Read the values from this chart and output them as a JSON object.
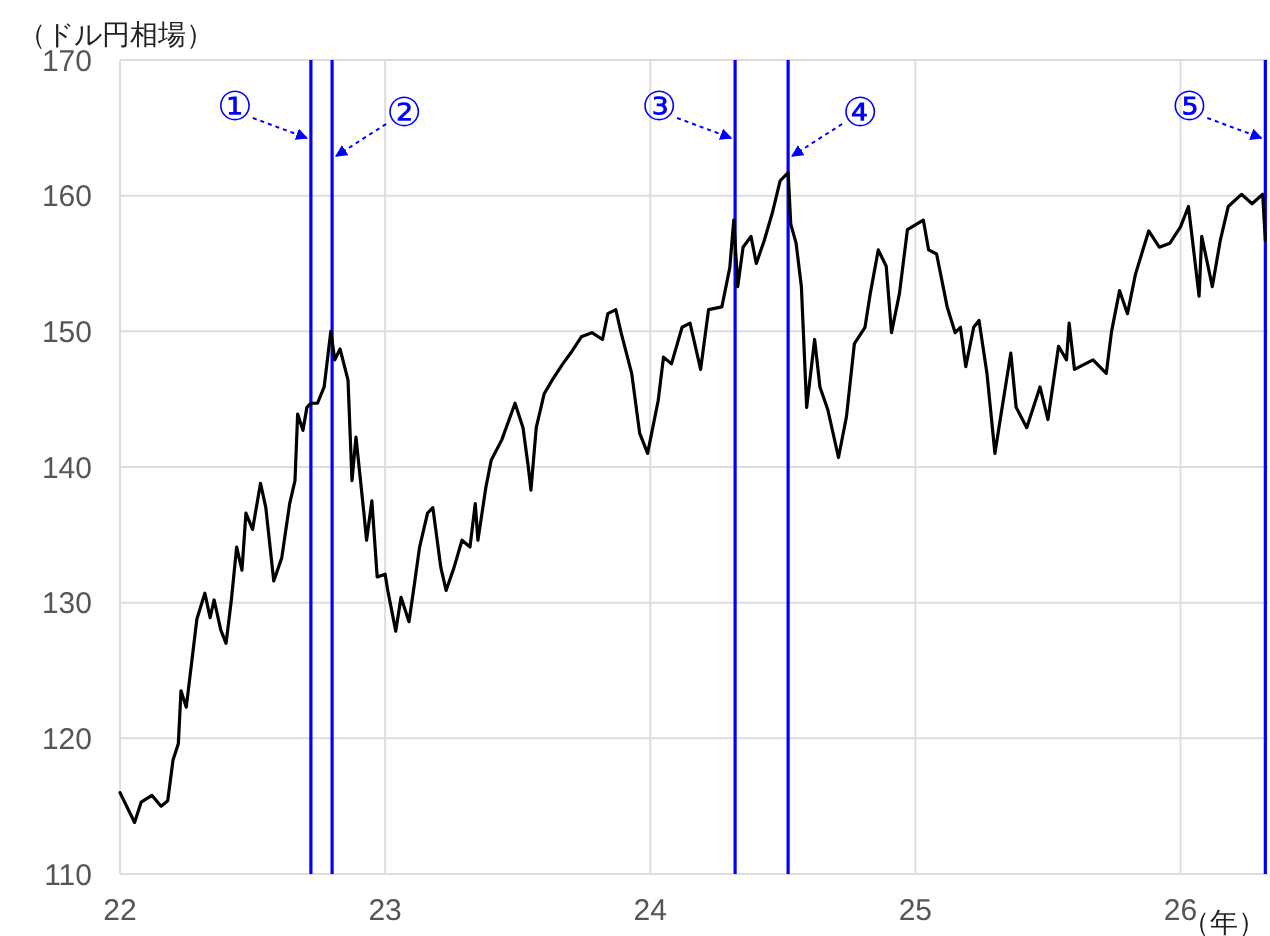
{
  "chart_data": {
    "type": "line",
    "ylabel": "（ドル円相場）",
    "xlabel": "（年）",
    "xlim": [
      22,
      26.33
    ],
    "xticks": [
      22,
      23,
      24,
      25,
      26
    ],
    "ylim": [
      110,
      170
    ],
    "yticks": [
      110,
      120,
      130,
      140,
      150,
      160,
      170
    ],
    "grid": true,
    "marker": "none",
    "line_style": "solid",
    "ref_lines": [
      {
        "axis": "x",
        "value": 22.72,
        "label": "①",
        "color": "#0000ff"
      },
      {
        "axis": "x",
        "value": 22.8,
        "label": "②",
        "color": "#0000ff"
      },
      {
        "axis": "x",
        "value": 24.32,
        "label": "③",
        "color": "#0000ff"
      },
      {
        "axis": "x",
        "value": 24.52,
        "label": "④",
        "color": "#0000ff"
      },
      {
        "axis": "x",
        "value": 26.32,
        "label": "⑤",
        "color": "#0000ff"
      }
    ],
    "series": [
      {
        "color": "#000000",
        "x": [
          22.0,
          22.055,
          22.08,
          22.12,
          22.155,
          22.18,
          22.2,
          22.22,
          22.23,
          22.25,
          22.29,
          22.32,
          22.34,
          22.355,
          22.38,
          22.4,
          22.42,
          22.44,
          22.46,
          22.475,
          22.5,
          22.53,
          22.55,
          22.58,
          22.61,
          22.64,
          22.66,
          22.67,
          22.69,
          22.705,
          22.72,
          22.745,
          22.77,
          22.795,
          22.81,
          22.83,
          22.86,
          22.875,
          22.89,
          22.92,
          22.93,
          22.95,
          22.97,
          23.0,
          23.01,
          23.04,
          23.06,
          23.09,
          23.11,
          23.13,
          23.16,
          23.18,
          23.21,
          23.23,
          23.26,
          23.29,
          23.32,
          23.34,
          23.35,
          23.38,
          23.4,
          23.44,
          23.49,
          23.52,
          23.54,
          23.55,
          23.57,
          23.6,
          23.63,
          23.67,
          23.7,
          23.74,
          23.78,
          23.82,
          23.84,
          23.87,
          23.89,
          23.93,
          23.96,
          23.99,
          24.03,
          24.05,
          24.08,
          24.12,
          24.15,
          24.19,
          24.22,
          24.27,
          24.3,
          24.315,
          24.33,
          24.35,
          24.38,
          24.4,
          24.43,
          24.46,
          24.49,
          24.52,
          24.53,
          24.55,
          24.57,
          24.59,
          24.62,
          24.64,
          24.67,
          24.71,
          24.74,
          24.77,
          24.81,
          24.83,
          24.86,
          24.89,
          24.91,
          24.94,
          24.97,
          25.03,
          25.05,
          25.08,
          25.12,
          25.15,
          25.17,
          25.19,
          25.22,
          25.24,
          25.27,
          25.3,
          25.32,
          25.36,
          25.38,
          25.42,
          25.47,
          25.5,
          25.54,
          25.57,
          25.58,
          25.6,
          25.67,
          25.72,
          25.74,
          25.77,
          25.8,
          25.83,
          25.88,
          25.92,
          25.96,
          26.0,
          26.03,
          26.07,
          26.08,
          26.12,
          26.15,
          26.18,
          26.23,
          26.27,
          26.31,
          26.32
        ],
        "values": [
          116.0,
          113.8,
          115.3,
          115.8,
          115.0,
          115.4,
          118.4,
          119.6,
          123.5,
          122.3,
          128.8,
          130.7,
          128.9,
          130.2,
          128.0,
          127.0,
          130.2,
          134.1,
          132.4,
          136.6,
          135.4,
          138.8,
          137.0,
          131.6,
          133.3,
          137.3,
          139.0,
          143.9,
          142.7,
          144.4,
          144.7,
          144.7,
          145.9,
          150.0,
          147.9,
          148.7,
          146.4,
          139.0,
          142.2,
          136.6,
          134.6,
          137.5,
          131.9,
          132.1,
          130.9,
          127.9,
          130.4,
          128.6,
          131.3,
          134.1,
          136.6,
          137.0,
          132.6,
          130.9,
          132.6,
          134.6,
          134.1,
          137.3,
          134.6,
          138.5,
          140.5,
          142.0,
          144.7,
          142.9,
          140.0,
          138.3,
          142.9,
          145.4,
          146.4,
          147.6,
          148.4,
          149.6,
          149.9,
          149.4,
          151.3,
          151.6,
          149.9,
          146.9,
          142.5,
          141.0,
          144.9,
          148.1,
          147.6,
          150.3,
          150.6,
          147.2,
          151.6,
          151.8,
          154.7,
          158.2,
          153.3,
          156.2,
          157.0,
          155.0,
          156.7,
          158.7,
          161.1,
          161.7,
          157.9,
          156.5,
          153.3,
          144.4,
          149.4,
          145.9,
          144.2,
          140.7,
          143.7,
          149.1,
          150.3,
          152.8,
          156.0,
          154.8,
          149.9,
          152.8,
          157.5,
          158.2,
          156.0,
          155.7,
          151.8,
          149.9,
          150.3,
          147.4,
          150.3,
          150.8,
          146.9,
          141.0,
          143.5,
          148.4,
          144.4,
          142.9,
          145.9,
          143.5,
          148.9,
          147.9,
          150.6,
          147.2,
          147.9,
          146.9,
          150.0,
          153.0,
          151.3,
          154.2,
          157.4,
          156.2,
          156.5,
          157.7,
          159.2,
          152.6,
          157.0,
          153.3,
          156.7,
          159.2,
          160.1,
          159.4,
          160.1,
          156.7
        ]
      }
    ]
  }
}
